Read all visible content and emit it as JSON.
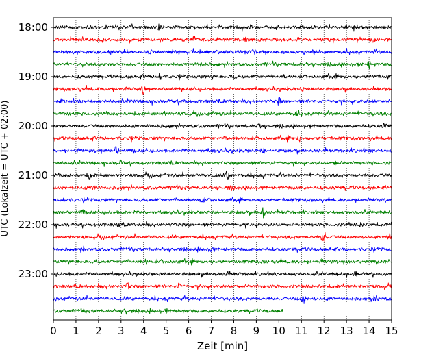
{
  "chart_data": {
    "type": "line",
    "title": "",
    "xlabel": "Zeit  [min]",
    "ylabel": "UTC (Lokalzeit = UTC + 02:00)",
    "xlim": [
      0,
      15
    ],
    "x_ticks": [
      "0",
      "1",
      "2",
      "3",
      "4",
      "5",
      "6",
      "7",
      "8",
      "9",
      "10",
      "11",
      "12",
      "13",
      "14",
      "15"
    ],
    "y_ticks": [
      "18:00",
      "19:00",
      "20:00",
      "21:00",
      "22:00",
      "23:00"
    ],
    "grid": "vertical dotted",
    "colors": [
      "#000000",
      "#ff0000",
      "#0000ff",
      "#008000"
    ],
    "traces": [
      {
        "start": "18:00",
        "color": "#000000",
        "duration_min": 15,
        "events": [
          [
            4.7,
            7
          ],
          [
            13.3,
            6
          ]
        ]
      },
      {
        "start": "18:15",
        "color": "#ff0000",
        "duration_min": 15,
        "events": [
          [
            8.5,
            6
          ],
          [
            14.2,
            6
          ]
        ]
      },
      {
        "start": "18:30",
        "color": "#0000ff",
        "duration_min": 15,
        "events": [
          [
            4.3,
            6
          ],
          [
            8.9,
            6
          ]
        ]
      },
      {
        "start": "18:45",
        "color": "#008000",
        "duration_min": 15,
        "events": [
          [
            6.5,
            6
          ],
          [
            14.0,
            7
          ]
        ]
      },
      {
        "start": "19:00",
        "color": "#000000",
        "duration_min": 15,
        "events": [
          [
            4.7,
            8
          ],
          [
            8.0,
            5
          ]
        ]
      },
      {
        "start": "19:15",
        "color": "#ff0000",
        "duration_min": 15,
        "events": [
          [
            4.0,
            10
          ],
          [
            11.0,
            6
          ]
        ]
      },
      {
        "start": "19:30",
        "color": "#0000ff",
        "duration_min": 15,
        "events": [
          [
            10.0,
            8
          ],
          [
            5.8,
            5
          ]
        ]
      },
      {
        "start": "19:45",
        "color": "#008000",
        "duration_min": 15,
        "events": [
          [
            4.9,
            5
          ],
          [
            10.8,
            5
          ]
        ]
      },
      {
        "start": "20:00",
        "color": "#000000",
        "duration_min": 15,
        "events": [
          [
            9.1,
            7
          ],
          [
            14.7,
            6
          ]
        ]
      },
      {
        "start": "20:15",
        "color": "#ff0000",
        "duration_min": 15,
        "events": [
          [
            7.7,
            6
          ],
          [
            10.9,
            6
          ]
        ]
      },
      {
        "start": "20:30",
        "color": "#0000ff",
        "duration_min": 15,
        "events": [
          [
            2.8,
            8
          ],
          [
            9.3,
            7
          ]
        ]
      },
      {
        "start": "20:45",
        "color": "#008000",
        "duration_min": 15,
        "events": [
          [
            3.0,
            5
          ],
          [
            12.5,
            5
          ]
        ]
      },
      {
        "start": "21:00",
        "color": "#000000",
        "duration_min": 15,
        "events": [
          [
            1.6,
            7
          ],
          [
            7.7,
            8
          ]
        ]
      },
      {
        "start": "21:15",
        "color": "#ff0000",
        "duration_min": 15,
        "events": [
          [
            1.8,
            7
          ],
          [
            7.9,
            6
          ]
        ]
      },
      {
        "start": "21:30",
        "color": "#0000ff",
        "duration_min": 15,
        "events": [
          [
            0.4,
            6
          ],
          [
            6.6,
            6
          ]
        ]
      },
      {
        "start": "21:45",
        "color": "#008000",
        "duration_min": 15,
        "events": [
          [
            9.3,
            9
          ],
          [
            1.3,
            6
          ]
        ]
      },
      {
        "start": "22:00",
        "color": "#000000",
        "duration_min": 15,
        "events": [
          [
            13.7,
            8
          ],
          [
            2.9,
            6
          ]
        ]
      },
      {
        "start": "22:15",
        "color": "#ff0000",
        "duration_min": 15,
        "events": [
          [
            12.0,
            14
          ],
          [
            14.9,
            7
          ]
        ]
      },
      {
        "start": "22:30",
        "color": "#0000ff",
        "duration_min": 15,
        "events": [
          [
            1.3,
            7
          ],
          [
            7.0,
            6
          ]
        ]
      },
      {
        "start": "22:45",
        "color": "#008000",
        "duration_min": 15,
        "events": [
          [
            4.1,
            5
          ],
          [
            11.9,
            5
          ]
        ]
      },
      {
        "start": "23:00",
        "color": "#000000",
        "duration_min": 15,
        "events": [
          [
            7.7,
            6
          ],
          [
            13.4,
            6
          ]
        ]
      },
      {
        "start": "23:15",
        "color": "#ff0000",
        "duration_min": 15,
        "events": [
          [
            3.3,
            7
          ],
          [
            5.6,
            7
          ]
        ]
      },
      {
        "start": "23:30",
        "color": "#0000ff",
        "duration_min": 15,
        "events": [
          [
            11.1,
            8
          ],
          [
            14.3,
            7
          ]
        ]
      },
      {
        "start": "23:45",
        "color": "#008000",
        "duration_min": 10.2,
        "events": [
          [
            3.2,
            6
          ],
          [
            5.0,
            5
          ]
        ]
      }
    ]
  }
}
